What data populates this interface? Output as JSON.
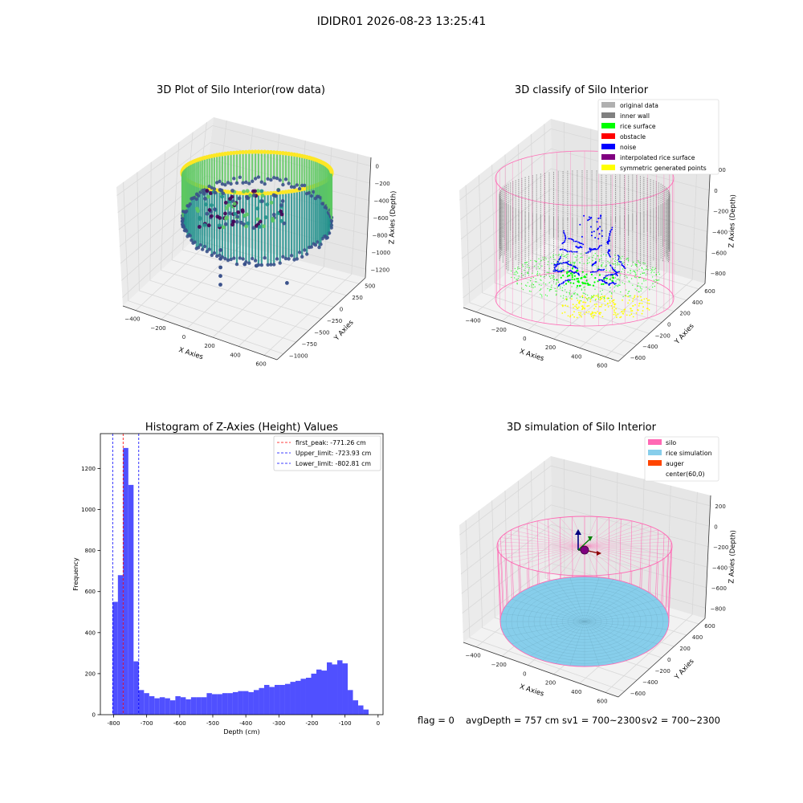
{
  "figure": {
    "suptitle": "IDIDR01 2026-08-23 13:25:41",
    "footer": {
      "flag": "flag = 0",
      "avg_depth": "avgDepth = 757 cm",
      "sv1": "sv1 = 700~2300",
      "sv2": "sv2 = 700~2300"
    }
  },
  "colors": {
    "viridis": [
      "#440154",
      "#3b528b",
      "#21918c",
      "#5ec962",
      "#fde725"
    ],
    "hist_bar": "#5050ff",
    "silo": "#ff69b4",
    "rice_sim": "#87ceeb",
    "auger": "#ff4500",
    "inner_wall": "#808080",
    "rice_surface": "#00ff00",
    "obstacle": "#ff0000",
    "noise": "#0000ff",
    "interpolated": "#800080",
    "symmetric": "#ffff00",
    "original": "#b0b0b0"
  },
  "chart_data": [
    {
      "type": "scatter",
      "title": "3D Plot of Silo Interior(row data)",
      "xlabel": "X Axies",
      "ylabel": "Y Axies",
      "zlabel": "Z Axies (Depth)",
      "x_ticks": [
        "−400",
        "−200",
        "0",
        "200",
        "400",
        "600"
      ],
      "y_ticks": [
        "−1000",
        "−750",
        "−500",
        "−250",
        "0",
        "250",
        "500"
      ],
      "z_ticks": [
        "−1200",
        "−1000",
        "−800",
        "−600",
        "−400",
        "−200",
        "0"
      ],
      "xlim": [
        -550,
        700
      ],
      "ylim": [
        -1050,
        600
      ],
      "zlim": [
        -1300,
        100
      ],
      "colormap": "viridis",
      "scatter_outliers": [
        {
          "x": 0,
          "y": 0,
          "z": -700
        },
        {
          "x": 0,
          "y": 0,
          "z": -800
        },
        {
          "x": 0,
          "y": 0,
          "z": -900
        },
        {
          "x": 0,
          "y": 0,
          "z": -1000
        },
        {
          "x": 0,
          "y": 0,
          "z": -1100
        },
        {
          "x": 150,
          "y": -100,
          "z": -850
        },
        {
          "x": 200,
          "y": -200,
          "z": -900
        },
        {
          "x": 380,
          "y": -350,
          "z": -1100
        }
      ]
    },
    {
      "type": "scatter",
      "title": "3D classify of Silo Interior",
      "xlabel": "X Axies",
      "ylabel": "Y Axies",
      "zlabel": "Z Axies (Depth)",
      "x_ticks": [
        "−400",
        "−200",
        "0",
        "200",
        "400",
        "600"
      ],
      "y_ticks": [
        "−600",
        "−400",
        "−200",
        "0",
        "200",
        "400",
        "600"
      ],
      "z_ticks": [
        "−800",
        "−600",
        "−400",
        "−200",
        "0",
        "200"
      ],
      "xlim": [
        -550,
        700
      ],
      "ylim": [
        -650,
        650
      ],
      "zlim": [
        -900,
        250
      ],
      "legend_position": "upper-right",
      "legend": [
        {
          "label": "original data",
          "color": "#b0b0b0"
        },
        {
          "label": "inner wall",
          "color": "#808080"
        },
        {
          "label": "rice surface",
          "color": "#00ff00"
        },
        {
          "label": "obstacle",
          "color": "#ff0000"
        },
        {
          "label": "noise",
          "color": "#0000ff"
        },
        {
          "label": "interpolated rice surface",
          "color": "#800080"
        },
        {
          "label": "symmetric generated points",
          "color": "#ffff00"
        }
      ]
    },
    {
      "type": "bar",
      "title": "Histogram of Z-Axies (Height) Values",
      "xlabel": "Depth (cm)",
      "ylabel": "Frequency",
      "xlim": [
        -840,
        15
      ],
      "ylim": [
        0,
        1370
      ],
      "x_ticks": [
        -800,
        -700,
        -600,
        -500,
        -400,
        -300,
        -200,
        -100,
        0
      ],
      "y_ticks": [
        0,
        200,
        400,
        600,
        800,
        1000,
        1200
      ],
      "bin_start": -802.81,
      "bin_width": 15.8,
      "values": [
        550,
        680,
        1300,
        1120,
        260,
        120,
        105,
        90,
        80,
        85,
        80,
        70,
        90,
        85,
        75,
        85,
        85,
        85,
        105,
        100,
        100,
        105,
        105,
        110,
        115,
        115,
        110,
        120,
        130,
        145,
        135,
        145,
        145,
        150,
        160,
        165,
        175,
        180,
        200,
        220,
        215,
        255,
        245,
        265,
        250,
        120,
        70,
        45,
        25
      ],
      "legend_position": "upper-right",
      "vlines": [
        {
          "x": -771.26,
          "color": "#ff0000",
          "label": "first_peak: -771.26 cm"
        },
        {
          "x": -723.93,
          "color": "#0000ff",
          "label": "Upper_limit: -723.93 cm"
        },
        {
          "x": -802.81,
          "color": "#0000ff",
          "label": "Lower_limit: -802.81 cm"
        }
      ]
    },
    {
      "type": "scatter",
      "title": "3D simulation of Silo Interior",
      "xlabel": "X Axies",
      "ylabel": "Y Axies",
      "zlabel": "Z Axies (Depth)",
      "x_ticks": [
        "−400",
        "−200",
        "0",
        "200",
        "400",
        "600"
      ],
      "y_ticks": [
        "−600",
        "−400",
        "−200",
        "0",
        "200",
        "400",
        "600"
      ],
      "z_ticks": [
        "−800",
        "−600",
        "−400",
        "−200",
        "0",
        "200"
      ],
      "xlim": [
        -550,
        700
      ],
      "ylim": [
        -650,
        650
      ],
      "zlim": [
        -900,
        250
      ],
      "legend_position": "upper-right",
      "legend": [
        {
          "label": "silo",
          "color": "#ff69b4"
        },
        {
          "label": "rice simulation",
          "color": "#87ceeb"
        },
        {
          "label": "auger",
          "color": "#ff4500"
        },
        {
          "label": "center(60,0)",
          "color": "#ffffff"
        }
      ]
    }
  ]
}
